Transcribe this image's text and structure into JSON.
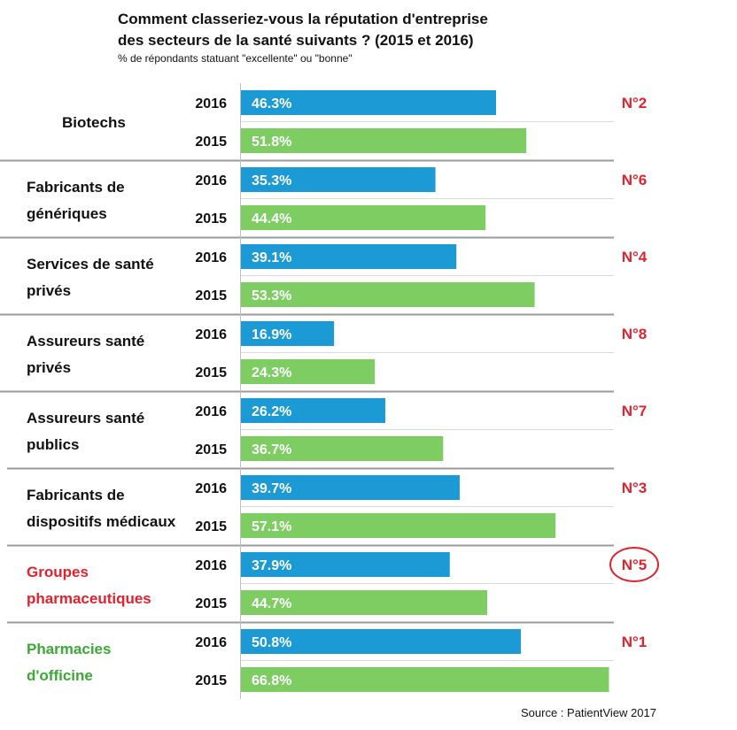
{
  "chart_data": {
    "type": "bar",
    "orientation": "horizontal",
    "title_lines": [
      "Comment classeriez-vous la réputation d'entreprise",
      "des secteurs de la santé suivants ? (2015 et 2016)"
    ],
    "subtitle": "% de répondants statuant \"excellente\" ou \"bonne\"",
    "source": "Source : PatientView 2017",
    "xlim": [
      0,
      70
    ],
    "grid": false,
    "series": [
      {
        "name": "2016",
        "color": "#1b9ad6"
      },
      {
        "name": "2015",
        "color": "#7dcd63"
      }
    ],
    "categories": [
      {
        "label_lines": [
          "Biotechs"
        ],
        "label_color": "#111111",
        "values": [
          46.3,
          51.8
        ],
        "value_labels": [
          "46.3%",
          "51.8%"
        ],
        "rank": "N°2",
        "rank_circled": false
      },
      {
        "label_lines": [
          "Fabricants de",
          "génériques"
        ],
        "label_color": "#111111",
        "values": [
          35.3,
          44.4
        ],
        "value_labels": [
          "35.3%",
          "44.4%"
        ],
        "rank": "N°6",
        "rank_circled": false
      },
      {
        "label_lines": [
          "Services de santé",
          "privés"
        ],
        "label_color": "#111111",
        "values": [
          39.1,
          53.3
        ],
        "value_labels": [
          "39.1%",
          "53.3%"
        ],
        "rank": "N°4",
        "rank_circled": false
      },
      {
        "label_lines": [
          "Assureurs santé",
          "privés"
        ],
        "label_color": "#111111",
        "values": [
          16.9,
          24.3
        ],
        "value_labels": [
          "16.9%",
          "24.3%"
        ],
        "rank": "N°8",
        "rank_circled": false
      },
      {
        "label_lines": [
          "Assureurs santé",
          "publics"
        ],
        "label_color": "#111111",
        "values": [
          26.2,
          36.7
        ],
        "value_labels": [
          "26.2%",
          "36.7%"
        ],
        "rank": "N°7",
        "rank_circled": false
      },
      {
        "label_lines": [
          "Fabricants de",
          "dispositifs médicaux"
        ],
        "label_color": "#111111",
        "values": [
          39.7,
          57.1
        ],
        "value_labels": [
          "39.7%",
          "57.1%"
        ],
        "rank": "N°3",
        "rank_circled": false
      },
      {
        "label_lines": [
          "Groupes",
          "pharmaceutiques"
        ],
        "label_color": "#e2222d",
        "values": [
          37.9,
          44.7
        ],
        "value_labels": [
          "37.9%",
          "44.7%"
        ],
        "rank": "N°5",
        "rank_circled": true
      },
      {
        "label_lines": [
          "Pharmacies",
          "d'officine"
        ],
        "label_color": "#3aaa35",
        "values": [
          50.8,
          66.8
        ],
        "value_labels": [
          "50.8%",
          "66.8%"
        ],
        "rank": "N°1",
        "rank_circled": false
      }
    ],
    "rank_color": "#e2222d"
  }
}
